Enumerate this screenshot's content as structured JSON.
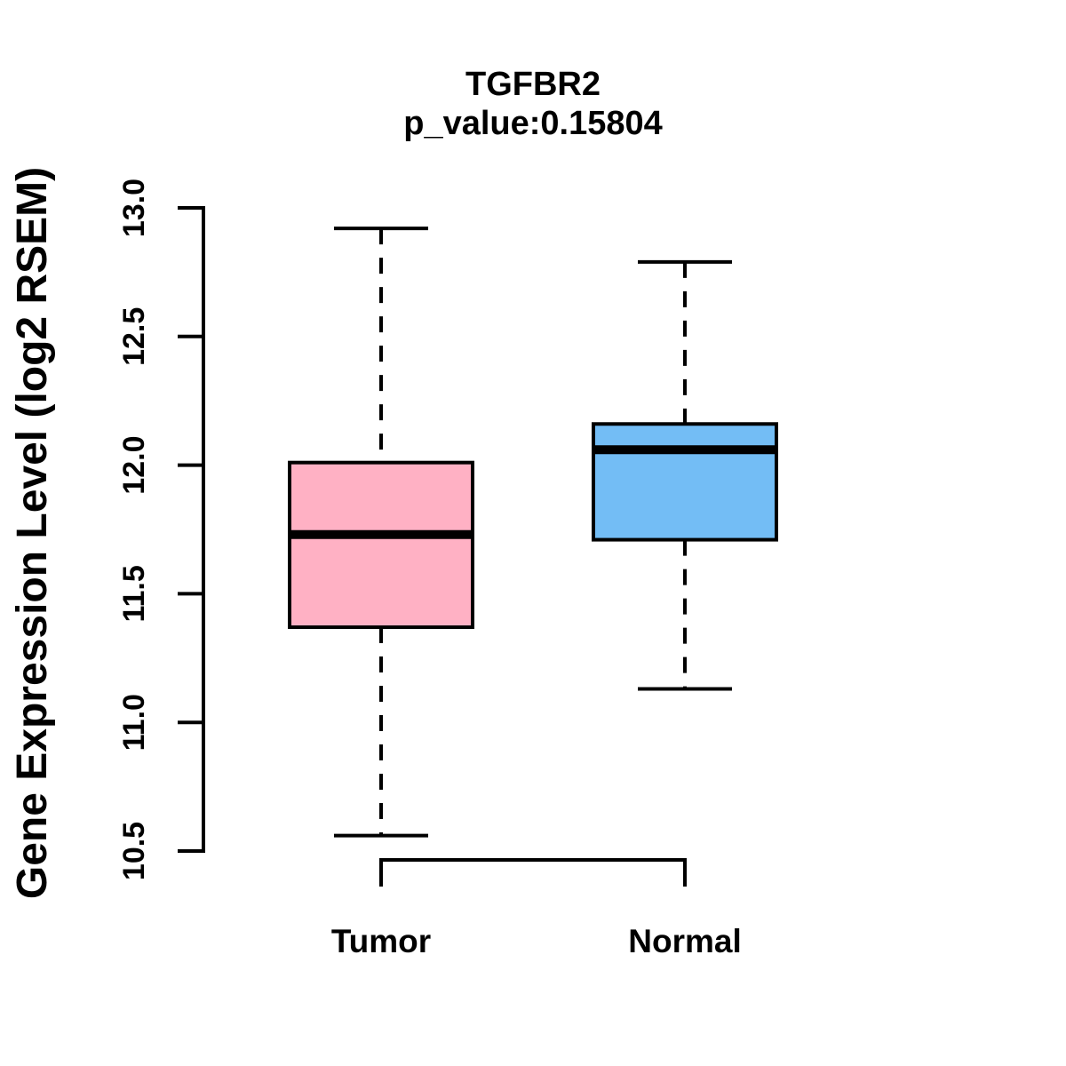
{
  "chart_data": {
    "type": "boxplot",
    "title": "TGFBR2",
    "subtitle": "p_value:0.15804",
    "ylabel": "Gene Expression Level (log2 RSEM)",
    "ylim": [
      10.5,
      13.0
    ],
    "yticks": [
      10.5,
      11.0,
      11.5,
      12.0,
      12.5,
      13.0
    ],
    "grid": false,
    "legend": "none",
    "categories": [
      "Tumor",
      "Normal"
    ],
    "series": [
      {
        "name": "Tumor",
        "fill": "#FFB1C4",
        "whisker_low": 10.56,
        "q1": 11.37,
        "median": 11.73,
        "q3": 12.01,
        "whisker_high": 12.92
      },
      {
        "name": "Normal",
        "fill": "#73BDF5",
        "whisker_low": 11.13,
        "q1": 11.71,
        "median": 12.06,
        "q3": 12.16,
        "whisker_high": 12.79
      }
    ],
    "colors": {
      "ink": "#000000",
      "background": "#FFFFFF",
      "tumor_fill": "#FFB1C4",
      "normal_fill": "#73BDF5"
    }
  }
}
